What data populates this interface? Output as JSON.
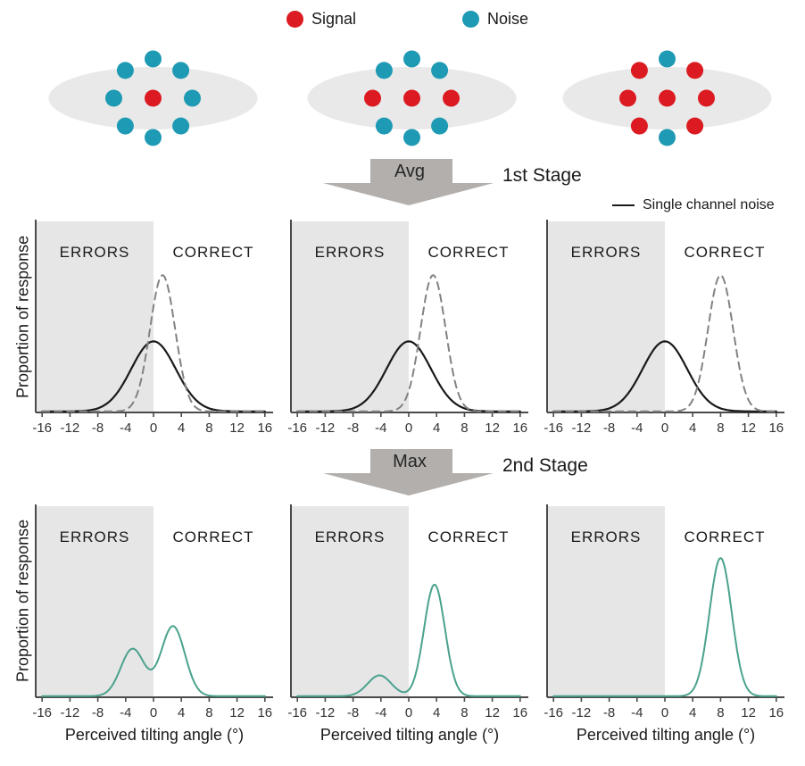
{
  "colors": {
    "signal_red": "#DB1B21",
    "noise_teal": "#1E9AB4",
    "ellipse_gray": "#E9E9E9",
    "region_shade": "#E6E6E6",
    "arrow_gray": "#B3AFAC",
    "solid_curve": "#1A1A1A",
    "dashed_curve": "#828282",
    "max_curve_green": "#4AA28D",
    "axis": "#4A4A4A",
    "text": "#1A1A1A"
  },
  "legend": {
    "signal_label": "Signal",
    "noise_label": "Noise",
    "single_channel_label": "Single channel noise"
  },
  "stimuli": [
    {
      "name": "single-signal-center-noise-surround",
      "center": "signal",
      "ring": {
        "top": "noise",
        "top_right": "noise",
        "right": "noise",
        "bottom_right": "noise",
        "bottom": "noise",
        "bottom_left": "noise",
        "left": "noise",
        "top_left": "noise"
      }
    },
    {
      "name": "three-signal-horizontal-row",
      "center": "signal",
      "ring": {
        "top": "noise",
        "top_right": "noise",
        "right": "signal",
        "bottom_right": "noise",
        "bottom": "noise",
        "bottom_left": "noise",
        "left": "signal",
        "top_left": "noise"
      }
    },
    {
      "name": "seven-signal-cluster",
      "center": "signal",
      "ring": {
        "top": "noise",
        "top_right": "signal",
        "right": "signal",
        "bottom_right": "signal",
        "bottom": "noise",
        "bottom_left": "signal",
        "left": "signal",
        "top_left": "signal"
      }
    }
  ],
  "stages": [
    {
      "arrow": "Avg",
      "label": "1st Stage"
    },
    {
      "arrow": "Max",
      "label": "2nd Stage"
    }
  ],
  "chart_data": {
    "type": "line",
    "x_range": [
      -16,
      16
    ],
    "x_ticks": [
      -16,
      -12,
      -8,
      -4,
      0,
      4,
      8,
      12,
      16
    ],
    "xlabel": "Perceived tilting angle (°)",
    "ylabel": "Proportion of response",
    "grid": false,
    "legend_entry": "Single channel noise",
    "regions": [
      {
        "label": "ERRORS",
        "x_from": -16,
        "x_to": 0,
        "shaded": true
      },
      {
        "label": "CORRECT",
        "x_from": 0,
        "x_to": 16,
        "shaded": false
      }
    ],
    "plots": [
      {
        "id": "stage1-left",
        "stage": 1,
        "curves": [
          {
            "name": "single channel noise",
            "style": "solid",
            "gaussians": [
              {
                "mean": 0,
                "sigma": 3.2,
                "peak": 0.37
              }
            ]
          },
          {
            "name": "averaged channels",
            "style": "dashed",
            "gaussians": [
              {
                "mean": 1.3,
                "sigma": 1.8,
                "peak": 0.72
              }
            ]
          }
        ]
      },
      {
        "id": "stage1-middle",
        "stage": 1,
        "curves": [
          {
            "name": "single channel noise",
            "style": "solid",
            "gaussians": [
              {
                "mean": 0,
                "sigma": 3.2,
                "peak": 0.37
              }
            ]
          },
          {
            "name": "averaged channels",
            "style": "dashed",
            "gaussians": [
              {
                "mean": 3.5,
                "sigma": 1.8,
                "peak": 0.72
              }
            ]
          }
        ]
      },
      {
        "id": "stage1-right",
        "stage": 1,
        "curves": [
          {
            "name": "single channel noise",
            "style": "solid",
            "gaussians": [
              {
                "mean": 0,
                "sigma": 3.2,
                "peak": 0.37
              }
            ]
          },
          {
            "name": "averaged channels",
            "style": "dashed",
            "gaussians": [
              {
                "mean": 8,
                "sigma": 1.8,
                "peak": 0.72
              }
            ]
          }
        ]
      },
      {
        "id": "stage2-left",
        "stage": 2,
        "curves": [
          {
            "name": "max rule output",
            "style": "green",
            "gaussians": [
              {
                "mean": -3,
                "sigma": 1.7,
                "peak": 0.25
              },
              {
                "mean": 2.8,
                "sigma": 1.7,
                "peak": 0.37
              }
            ]
          }
        ]
      },
      {
        "id": "stage2-middle",
        "stage": 2,
        "curves": [
          {
            "name": "max rule output",
            "style": "green",
            "gaussians": [
              {
                "mean": -4.2,
                "sigma": 1.7,
                "peak": 0.11
              },
              {
                "mean": 3.7,
                "sigma": 1.5,
                "peak": 0.59
              }
            ]
          }
        ]
      },
      {
        "id": "stage2-right",
        "stage": 2,
        "curves": [
          {
            "name": "max rule output",
            "style": "green",
            "gaussians": [
              {
                "mean": 8,
                "sigma": 1.6,
                "peak": 0.73
              }
            ]
          }
        ]
      }
    ]
  }
}
